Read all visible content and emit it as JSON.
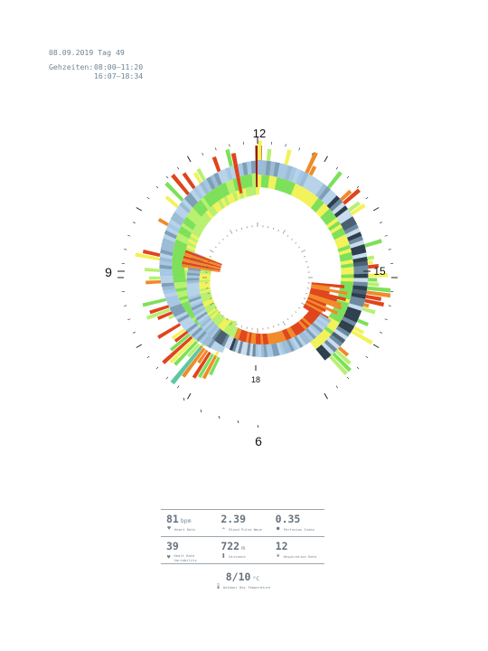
{
  "header": {
    "date_line": "08.09.2019 Tag 49",
    "times_label": "Gehzeiten:",
    "time_1": "08:00–11:20",
    "time_2": "16:07–18:34"
  },
  "chart_data": {
    "type": "radial-spiral-bar",
    "hour_labels": [
      "12",
      "15",
      "18",
      "6",
      "9"
    ],
    "walks": [
      {
        "start": "08:00",
        "end": "11:20"
      },
      {
        "start": "16:07",
        "end": "18:34"
      }
    ],
    "palette": {
      "green": "#7de05a",
      "light_green": "#b8f070",
      "yellow": "#f2f25a",
      "orange": "#f08a2a",
      "red": "#e0441c",
      "dark_red": "#9a1a10",
      "light_blue": "#a6c8e4",
      "blue_grey": "#7f9fb8",
      "dark_slate": "#2e3f4e",
      "teal": "#5cc8a0"
    }
  },
  "stats": {
    "heart_rate": {
      "value": "81",
      "unit": "bpm",
      "label": "Heart Rate",
      "icon": "heart-icon"
    },
    "blood_pulse_wave": {
      "value": "2.39",
      "unit": "",
      "label": "Blood Pulse Wave",
      "icon": "pulse-wave-icon"
    },
    "perfusion_index": {
      "value": "0.35",
      "unit": "",
      "label": "Perfusion Index",
      "icon": "drop-icon"
    },
    "hrv": {
      "value": "39",
      "unit": "",
      "label": "Heart Rate Variability",
      "icon": "heart-pulse-icon"
    },
    "distance": {
      "value": "722",
      "unit": "m",
      "label": "Distance",
      "icon": "footsteps-icon"
    },
    "respiration": {
      "value": "12",
      "unit": "",
      "label": "Respiration Rate",
      "icon": "lungs-icon"
    },
    "temperature": {
      "value": "8/10",
      "unit": "°C",
      "label": "Outdoor Day Temperature",
      "icon": "thermometer-icon"
    }
  }
}
